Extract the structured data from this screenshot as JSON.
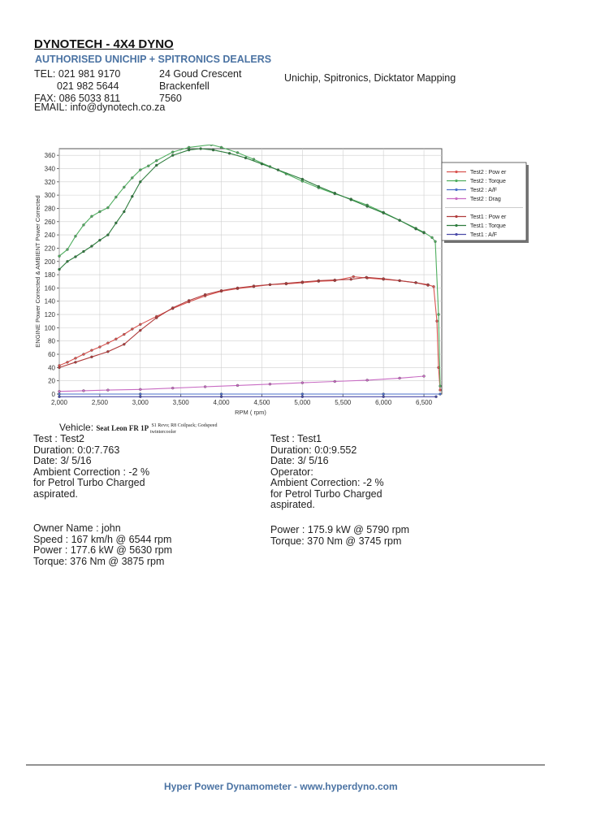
{
  "header": {
    "company": "DYNOTECH - 4X4 DYNO",
    "dealers": "AUTHORISED UNICHIP + SPITRONICS DEALERS",
    "contact": [
      "TEL: 021 981 9170",
      "021 982 5644",
      "FAX: 086 5033 811"
    ],
    "address": [
      "24 Goud Crescent",
      "Brackenfell",
      "7560"
    ],
    "services": "Unichip, Spitronics, Dicktator Mapping",
    "email": "EMAIL: info@dynotech.co.za"
  },
  "vehicle": {
    "label": "Vehicle:",
    "name": "Seat Leon FR 1P",
    "mods": "S1 Revo; R8 Coilpack; Godspeed",
    "mods2": "twintercooler"
  },
  "test2": {
    "lines": [
      "Test    : Test2",
      "Duration: 0:0:7.763",
      "Date:  3/ 5/16",
      "Ambient Correction : -2 %",
      " for Petrol Turbo Charged",
      "aspirated."
    ],
    "owner_lines": [
      "Owner Name : john",
      "Speed : 167 km/h @ 6544 rpm",
      "Power : 177.6 kW @ 5630 rpm",
      "Torque: 376 Nm @ 3875 rpm"
    ]
  },
  "test1": {
    "lines": [
      "Test    : Test1",
      "Duration: 0:0:9.552",
      "Date:  3/ 5/16",
      "Operator:",
      "Ambient Correction: -2 %",
      " for Petrol Turbo Charged",
      "aspirated."
    ],
    "result_lines": [
      "Power : 175.9 kW @ 5790 rpm",
      "Torque: 370 Nm @ 3745 rpm"
    ]
  },
  "footer": "Hyper Power Dynamometer  -  www.hyperdyno.com",
  "chart_data": {
    "type": "line",
    "xlabel": "RPM ( rpm)",
    "ylabel": "ENGINE Power Corrected & AMBIENT Power Corrected",
    "xlim": [
      2000,
      6720
    ],
    "ylim": [
      0,
      370
    ],
    "xticks": [
      2000,
      2500,
      3000,
      3500,
      4000,
      4500,
      5000,
      5500,
      6000,
      6500
    ],
    "xtick_labels": [
      "2,000",
      "2,500",
      "3,000",
      "3,500",
      "4,000",
      "4,500",
      "5,000",
      "5,500",
      "6,000",
      "6,500"
    ],
    "yticks": [
      0,
      20,
      40,
      60,
      80,
      100,
      120,
      140,
      160,
      180,
      200,
      220,
      240,
      260,
      280,
      300,
      320,
      340,
      360
    ],
    "grid": true,
    "legend_position": "right",
    "legend_groups": [
      [
        "Test2 : Pow er",
        "Test2 : Torque",
        "Test2 : A/F",
        "Test2 : Drag"
      ],
      [
        "Test1 : Pow er",
        "Test1 : Torque",
        "Test1 : A/F"
      ]
    ],
    "series": [
      {
        "name": "Test2 : Pow er",
        "color": "#d9534f",
        "x": [
          2000,
          2100,
          2200,
          2300,
          2400,
          2500,
          2600,
          2700,
          2800,
          2900,
          3000,
          3200,
          3400,
          3600,
          3800,
          4000,
          4200,
          4400,
          4600,
          4800,
          5000,
          5200,
          5400,
          5630,
          5800,
          6000,
          6200,
          6400,
          6550,
          6620,
          6660,
          6680,
          6700
        ],
        "y": [
          43,
          48,
          54,
          60,
          66,
          71,
          77,
          83,
          90,
          98,
          105,
          117,
          129,
          139,
          148,
          155,
          159,
          162,
          165,
          166,
          168,
          170,
          171,
          177,
          175,
          173,
          171,
          168,
          165,
          162,
          110,
          40,
          6
        ]
      },
      {
        "name": "Test2 : Torque",
        "color": "#4fae5f",
        "x": [
          2000,
          2100,
          2200,
          2300,
          2400,
          2500,
          2600,
          2700,
          2800,
          2900,
          3000,
          3100,
          3200,
          3400,
          3600,
          3875,
          4000,
          4200,
          4400,
          4600,
          4800,
          5000,
          5200,
          5400,
          5600,
          5800,
          6000,
          6200,
          6400,
          6500,
          6600,
          6640,
          6680,
          6700
        ],
        "y": [
          208,
          218,
          238,
          255,
          268,
          275,
          281,
          297,
          312,
          326,
          338,
          344,
          352,
          365,
          372,
          376,
          372,
          364,
          354,
          343,
          332,
          321,
          311,
          302,
          294,
          285,
          274,
          262,
          250,
          244,
          236,
          230,
          120,
          12
        ]
      },
      {
        "name": "Test2 : A/F",
        "color": "#4a6fc9",
        "x": [
          2000,
          3000,
          4000,
          5000,
          6000,
          6700
        ],
        "y": [
          0,
          0,
          0,
          0,
          0,
          0
        ]
      },
      {
        "name": "Test2 : Drag",
        "color": "#c86bc3",
        "x": [
          2000,
          2300,
          2600,
          3000,
          3400,
          3800,
          4200,
          4600,
          5000,
          5400,
          5800,
          6200,
          6500
        ],
        "y": [
          4,
          5,
          6,
          7,
          9,
          11,
          13,
          15,
          17,
          19,
          21,
          24,
          27
        ]
      },
      {
        "name": "Test1 : Pow er",
        "color": "#b03c3c",
        "x": [
          2000,
          2200,
          2400,
          2600,
          2800,
          3000,
          3200,
          3400,
          3600,
          3800,
          4000,
          4200,
          4400,
          4600,
          4800,
          5000,
          5200,
          5400,
          5600,
          5790,
          6000,
          6200,
          6400,
          6550
        ],
        "y": [
          40,
          48,
          56,
          64,
          75,
          96,
          115,
          130,
          141,
          150,
          156,
          160,
          163,
          165,
          167,
          169,
          171,
          172,
          173,
          176,
          174,
          171,
          168,
          164
        ]
      },
      {
        "name": "Test1 : Torque",
        "color": "#2e7d3e",
        "x": [
          2000,
          2100,
          2200,
          2300,
          2400,
          2500,
          2600,
          2700,
          2800,
          2900,
          3000,
          3200,
          3400,
          3600,
          3745,
          3900,
          4100,
          4300,
          4500,
          4700,
          5000,
          5200,
          5400,
          5600,
          5800,
          6000,
          6200,
          6400,
          6500
        ],
        "y": [
          188,
          200,
          207,
          215,
          223,
          232,
          240,
          258,
          275,
          298,
          320,
          345,
          360,
          368,
          370,
          368,
          363,
          356,
          347,
          338,
          324,
          313,
          303,
          293,
          283,
          273,
          262,
          249,
          243
        ]
      },
      {
        "name": "Test1 : A/F",
        "color": "#4a4aa8",
        "x": [
          2000,
          3000,
          4000,
          5000,
          6000,
          6650
        ],
        "y": [
          -4,
          -4,
          -4,
          -4,
          -4,
          -4
        ]
      }
    ]
  }
}
